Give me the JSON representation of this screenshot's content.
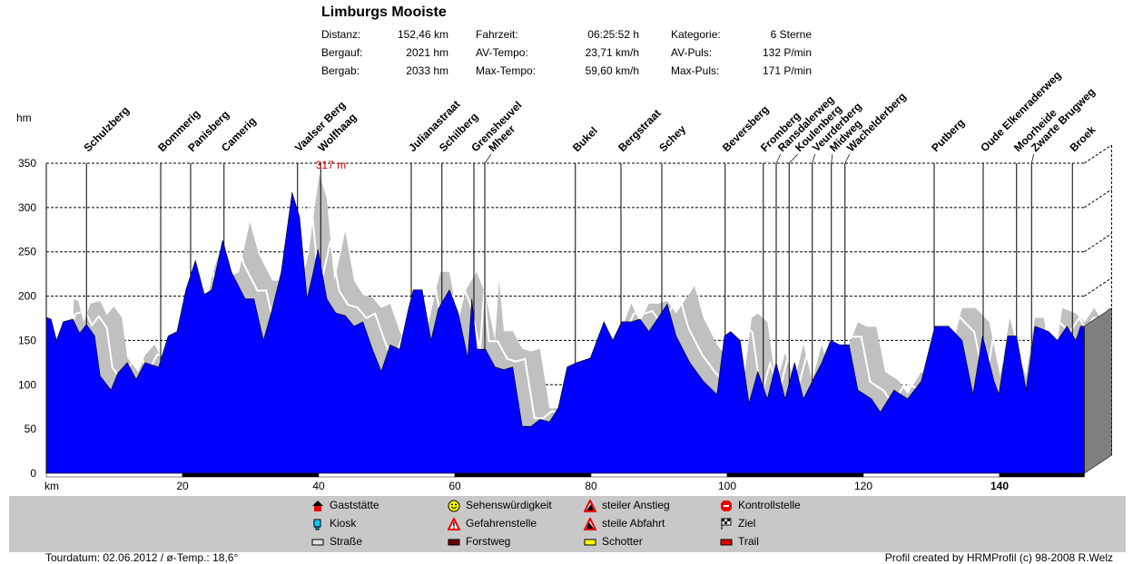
{
  "header": {
    "title": "Limburgs Mooiste",
    "stats": [
      [
        {
          "label": "Distanz:",
          "value": "152,46 km"
        },
        {
          "label": "Fahrzeit:",
          "value": "06:25:52 h"
        },
        {
          "label": "Kategorie:",
          "value": "6 Sterne"
        }
      ],
      [
        {
          "label": "Bergauf:",
          "value": "2021 hm"
        },
        {
          "label": "AV-Tempo:",
          "value": "23,71 km/h"
        },
        {
          "label": "AV-Puls:",
          "value": "132 P/min"
        }
      ],
      [
        {
          "label": "Bergab:",
          "value": "2033 hm"
        },
        {
          "label": "Max-Tempo:",
          "value": "59,60 km/h"
        },
        {
          "label": "Max-Puls:",
          "value": "171 P/min"
        }
      ]
    ]
  },
  "chart_data": {
    "type": "area",
    "title": "Limburgs Mooiste",
    "xlabel": "km",
    "ylabel": "hm",
    "xlim": [
      0,
      152.46
    ],
    "ylim": [
      0,
      350
    ],
    "xticks": [
      20,
      40,
      60,
      80,
      100,
      120,
      140
    ],
    "yticks": [
      0,
      50,
      100,
      150,
      200,
      250,
      300,
      350
    ],
    "grid": true,
    "max_label": "317 m",
    "max_km": 36.1,
    "colors": {
      "profile": "#0000ff",
      "shadow": "#c0c0c0",
      "side": "#808080"
    },
    "profile": [
      [
        0,
        176
      ],
      [
        0.7,
        174
      ],
      [
        1.5,
        150
      ],
      [
        2.5,
        171
      ],
      [
        3.9,
        174
      ],
      [
        4.9,
        158
      ],
      [
        5.9,
        168
      ],
      [
        7.1,
        155
      ],
      [
        7.9,
        110
      ],
      [
        9.5,
        94
      ],
      [
        10.5,
        113
      ],
      [
        11.9,
        125
      ],
      [
        13.2,
        106
      ],
      [
        14.5,
        125
      ],
      [
        16.5,
        120
      ],
      [
        17.9,
        155
      ],
      [
        19.2,
        160
      ],
      [
        20.5,
        207
      ],
      [
        21.9,
        240
      ],
      [
        23.2,
        202
      ],
      [
        24.3,
        207
      ],
      [
        25.9,
        263
      ],
      [
        27.2,
        227
      ],
      [
        29.2,
        197
      ],
      [
        30.5,
        197
      ],
      [
        31.9,
        150
      ],
      [
        33.2,
        186
      ],
      [
        34.5,
        227
      ],
      [
        36.1,
        317
      ],
      [
        37.2,
        289
      ],
      [
        38.3,
        197
      ],
      [
        39.2,
        227
      ],
      [
        39.9,
        253
      ],
      [
        41.2,
        197
      ],
      [
        42.5,
        181
      ],
      [
        43.9,
        178
      ],
      [
        45.2,
        166
      ],
      [
        46.5,
        171
      ],
      [
        47.9,
        140
      ],
      [
        49.2,
        115
      ],
      [
        50.5,
        145
      ],
      [
        51.9,
        140
      ],
      [
        53.2,
        186
      ],
      [
        53.9,
        207
      ],
      [
        55.2,
        207
      ],
      [
        56.5,
        150
      ],
      [
        57.6,
        186
      ],
      [
        59.2,
        207
      ],
      [
        60.5,
        181
      ],
      [
        61.9,
        130
      ],
      [
        62.5,
        197
      ],
      [
        63.2,
        140
      ],
      [
        64.5,
        140
      ],
      [
        65.9,
        120
      ],
      [
        67.2,
        117
      ],
      [
        68.5,
        120
      ],
      [
        69.9,
        53
      ],
      [
        71.2,
        53
      ],
      [
        72.5,
        61
      ],
      [
        73.9,
        58
      ],
      [
        75.2,
        74
      ],
      [
        76.5,
        120
      ],
      [
        77.9,
        125
      ],
      [
        79.9,
        130
      ],
      [
        81.9,
        171
      ],
      [
        83.2,
        150
      ],
      [
        84.5,
        171
      ],
      [
        85.9,
        171
      ],
      [
        87.2,
        174
      ],
      [
        88.5,
        160
      ],
      [
        89.9,
        176
      ],
      [
        91.2,
        191
      ],
      [
        92.5,
        155
      ],
      [
        94.5,
        125
      ],
      [
        96.5,
        104
      ],
      [
        98.5,
        89
      ],
      [
        99.6,
        155
      ],
      [
        100.5,
        160
      ],
      [
        101.9,
        150
      ],
      [
        103.2,
        79
      ],
      [
        104.5,
        115
      ],
      [
        105.9,
        84
      ],
      [
        107.2,
        125
      ],
      [
        108.5,
        84
      ],
      [
        109.9,
        125
      ],
      [
        111.2,
        84
      ],
      [
        112.5,
        104
      ],
      [
        113.9,
        125
      ],
      [
        115.2,
        150
      ],
      [
        116.5,
        145
      ],
      [
        117.9,
        145
      ],
      [
        119.2,
        94
      ],
      [
        121.2,
        84
      ],
      [
        122.5,
        69
      ],
      [
        124.5,
        94
      ],
      [
        126.5,
        84
      ],
      [
        128.5,
        104
      ],
      [
        130.5,
        166
      ],
      [
        132.5,
        166
      ],
      [
        134.5,
        150
      ],
      [
        136.1,
        89
      ],
      [
        137.5,
        155
      ],
      [
        139.2,
        104
      ],
      [
        139.9,
        89
      ],
      [
        141.2,
        155
      ],
      [
        142.5,
        155
      ],
      [
        143.9,
        94
      ],
      [
        145.2,
        166
      ],
      [
        147.2,
        160
      ],
      [
        148.5,
        150
      ],
      [
        149.9,
        166
      ],
      [
        151.2,
        150
      ],
      [
        151.9,
        166
      ],
      [
        152.46,
        166
      ]
    ],
    "markers": [
      {
        "name": "Schulzberg",
        "km": 5.9
      },
      {
        "name": "Bommerig",
        "km": 16.8
      },
      {
        "name": "Panisberg",
        "km": 21.2
      },
      {
        "name": "Camerig",
        "km": 26.1
      },
      {
        "name": "Vaalser Berg",
        "km": 36.9
      },
      {
        "name": "Wolfhaag",
        "km": 40.3
      },
      {
        "name": "Julianastraat",
        "km": 53.6
      },
      {
        "name": "Schilberg",
        "km": 58.1
      },
      {
        "name": "Grensheuvel",
        "km": 62.8
      },
      {
        "name": "Mheer",
        "km": 64.4
      },
      {
        "name": "Bukel",
        "km": 77.7
      },
      {
        "name": "Bergstraat",
        "km": 84.4
      },
      {
        "name": "Schey",
        "km": 90.4
      },
      {
        "name": "Beversberg",
        "km": 99.7
      },
      {
        "name": "Fromberg",
        "km": 105.3
      },
      {
        "name": "Ransdalerweg",
        "km": 107.2
      },
      {
        "name": "Koulenberg",
        "km": 109.1
      },
      {
        "name": "Veurderberg",
        "km": 112.5
      },
      {
        "name": "Midweg",
        "km": 115.3
      },
      {
        "name": "Wachelderberg",
        "km": 117.3
      },
      {
        "name": "Putberg",
        "km": 130.4
      },
      {
        "name": "Oude Elkenraderweg",
        "km": 137.6
      },
      {
        "name": "Moorheide",
        "km": 142.5
      },
      {
        "name": "Zwarte Brugweg",
        "km": 144.7
      },
      {
        "name": "Broek",
        "km": 150.7
      }
    ]
  },
  "legend": [
    {
      "label": "Gaststätte",
      "icon": "house-icon"
    },
    {
      "label": "Kiosk",
      "icon": "kiosk-icon"
    },
    {
      "label": "Straße",
      "icon": "road-swatch",
      "color": "#e0e0e0"
    },
    {
      "label": "Sehenswürdigkeit",
      "icon": "smiley-icon"
    },
    {
      "label": "Gefahrenstelle",
      "icon": "warning-icon"
    },
    {
      "label": "Forstweg",
      "icon": "forest-road-swatch",
      "color": "#6b0000"
    },
    {
      "label": "steiler Anstieg",
      "icon": "steep-climb-icon"
    },
    {
      "label": "steile Abfahrt",
      "icon": "steep-descent-icon"
    },
    {
      "label": "Schotter",
      "icon": "gravel-swatch",
      "color": "#ffff00"
    },
    {
      "label": "Kontrollstelle",
      "icon": "stop-icon"
    },
    {
      "label": "Ziel",
      "icon": "finish-flag-icon"
    },
    {
      "label": "Trail",
      "icon": "trail-swatch",
      "color": "#e00000"
    }
  ],
  "footer": {
    "left": "Tourdatum: 02.06.2012  /  ø-Temp.: 18,6°",
    "right": "Profil created by HRMProfil (c) 98-2008 R.Welz"
  }
}
